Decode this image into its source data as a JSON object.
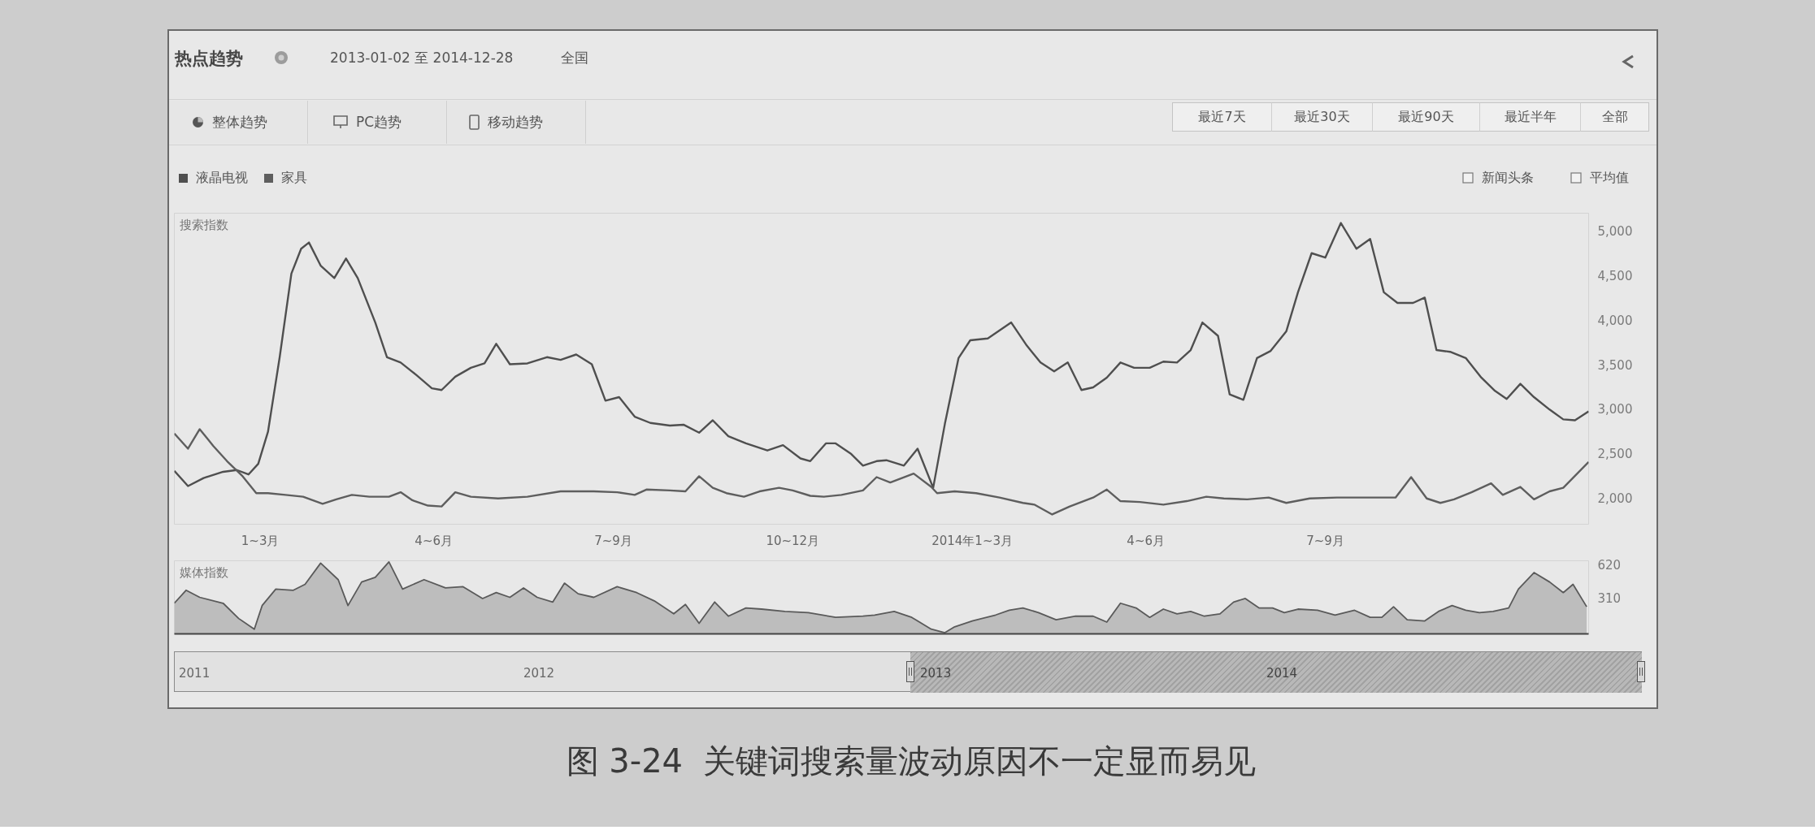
{
  "chart_data": [
    {
      "type": "line",
      "title": "热点趋势",
      "subtitle": "2013-01-02 至 2014-12-28",
      "ylabel": "搜索指数",
      "series": [
        {
          "name": "液晶电视",
          "color": "#4f4f4f",
          "x": [
            "2013-01-02",
            "2013-01-09",
            "2013-01-17",
            "2013-01-27",
            "2013-02-03",
            "2013-02-09",
            "2013-02-14",
            "2013-02-19",
            "2013-02-25",
            "2013-03-03",
            "2013-03-08",
            "2013-03-12",
            "2013-03-18",
            "2013-03-25",
            "2013-03-31",
            "2013-04-06",
            "2013-04-15",
            "2013-04-21",
            "2013-04-28",
            "2013-05-06",
            "2013-05-14",
            "2013-05-19",
            "2013-05-26",
            "2013-06-03",
            "2013-06-10",
            "2013-06-16",
            "2013-06-23",
            "2013-07-02",
            "2013-07-12",
            "2013-07-19",
            "2013-07-27",
            "2013-08-04",
            "2013-08-11",
            "2013-08-18",
            "2013-08-26",
            "2013-09-03",
            "2013-09-13",
            "2013-09-20",
            "2013-09-28",
            "2013-10-05",
            "2013-10-13",
            "2013-10-22",
            "2013-11-02",
            "2013-11-10",
            "2013-11-19",
            "2013-11-24",
            "2013-12-02",
            "2013-12-07",
            "2013-12-15",
            "2013-12-21",
            "2013-12-28",
            "2014-01-02",
            "2014-01-11",
            "2014-01-18",
            "2014-01-26",
            "2014-02-01",
            "2014-02-08",
            "2014-02-14",
            "2014-02-23",
            "2014-03-07",
            "2014-03-15",
            "2014-03-22",
            "2014-03-29",
            "2014-04-05",
            "2014-04-12",
            "2014-04-18",
            "2014-04-25",
            "2014-05-02",
            "2014-05-09",
            "2014-05-17",
            "2014-05-24",
            "2014-05-31",
            "2014-06-07",
            "2014-06-13",
            "2014-06-21",
            "2014-06-27",
            "2014-07-04",
            "2014-07-11",
            "2014-07-18",
            "2014-07-26",
            "2014-08-01",
            "2014-08-08",
            "2014-08-15",
            "2014-08-23",
            "2014-08-31",
            "2014-09-07",
            "2014-09-14",
            "2014-09-21",
            "2014-09-29",
            "2014-10-05",
            "2014-10-11",
            "2014-10-18",
            "2014-10-26",
            "2014-11-03",
            "2014-11-10",
            "2014-11-16",
            "2014-11-23",
            "2014-11-30",
            "2014-12-08",
            "2014-12-15",
            "2014-12-21",
            "2014-12-28"
          ],
          "values": [
            2300,
            2130,
            2220,
            2290,
            2310,
            2260,
            2380,
            2740,
            3580,
            4520,
            4800,
            4870,
            4610,
            4470,
            4690,
            4470,
            3970,
            3580,
            3520,
            3380,
            3230,
            3210,
            3360,
            3460,
            3510,
            3730,
            3500,
            3510,
            3580,
            3550,
            3610,
            3500,
            3090,
            3130,
            2910,
            2840,
            2810,
            2820,
            2730,
            2870,
            2690,
            2610,
            2530,
            2590,
            2440,
            2410,
            2610,
            2610,
            2490,
            2360,
            2410,
            2420,
            2360,
            2550,
            2110,
            2830,
            3570,
            3770,
            3790,
            3970,
            3710,
            3520,
            3420,
            3520,
            3210,
            3240,
            3350,
            3520,
            3460,
            3460,
            3530,
            3520,
            3660,
            3970,
            3820,
            3160,
            3100,
            3570,
            3650,
            3870,
            4310,
            4750,
            4700,
            5090,
            4800,
            4910,
            4310,
            4190,
            4190,
            4250,
            3660,
            3640,
            3570,
            3350,
            3200,
            3110,
            3280,
            3130,
            2990,
            2880,
            2870,
            2970
          ]
        },
        {
          "name": "家具",
          "color": "#5e5e5e",
          "x": [
            "2013-01-02",
            "2013-01-09",
            "2013-01-15",
            "2013-01-22",
            "2013-01-29",
            "2013-02-06",
            "2013-02-13",
            "2013-02-19",
            "2013-02-28",
            "2013-03-09",
            "2013-03-19",
            "2013-03-26",
            "2013-04-03",
            "2013-04-12",
            "2013-04-22",
            "2013-04-28",
            "2013-05-04",
            "2013-05-12",
            "2013-05-19",
            "2013-05-26",
            "2013-06-03",
            "2013-06-17",
            "2013-07-02",
            "2013-07-19",
            "2013-08-05",
            "2013-08-17",
            "2013-08-26",
            "2013-09-01",
            "2013-09-13",
            "2013-09-21",
            "2013-09-28",
            "2013-10-05",
            "2013-10-12",
            "2013-10-21",
            "2013-10-29",
            "2013-11-08",
            "2013-11-15",
            "2013-11-24",
            "2013-12-01",
            "2013-12-10",
            "2013-12-21",
            "2013-12-28",
            "2014-01-04",
            "2014-01-16",
            "2014-01-25",
            "2014-01-28",
            "2014-02-06",
            "2014-02-17",
            "2014-03-01",
            "2014-03-13",
            "2014-03-19",
            "2014-03-28",
            "2014-04-06",
            "2014-04-18",
            "2014-04-25",
            "2014-05-02",
            "2014-05-12",
            "2014-05-24",
            "2014-06-05",
            "2014-06-15",
            "2014-06-24",
            "2014-07-06",
            "2014-07-17",
            "2014-07-26",
            "2014-08-07",
            "2014-08-21",
            "2014-09-05",
            "2014-09-20",
            "2014-09-28",
            "2014-10-06",
            "2014-10-13",
            "2014-10-20",
            "2014-10-29",
            "2014-11-08",
            "2014-11-14",
            "2014-11-23",
            "2014-11-30",
            "2014-12-08",
            "2014-12-15",
            "2014-12-28"
          ],
          "values": [
            2720,
            2550,
            2770,
            2580,
            2410,
            2240,
            2050,
            2050,
            2030,
            2010,
            1930,
            1980,
            2030,
            2010,
            2010,
            2060,
            1970,
            1910,
            1900,
            2060,
            2010,
            1990,
            2010,
            2070,
            2070,
            2060,
            2030,
            2090,
            2080,
            2070,
            2240,
            2110,
            2050,
            2010,
            2070,
            2110,
            2080,
            2020,
            2010,
            2030,
            2080,
            2230,
            2170,
            2270,
            2120,
            2050,
            2070,
            2050,
            2000,
            1940,
            1920,
            1810,
            1900,
            2000,
            2090,
            1960,
            1950,
            1920,
            1960,
            2010,
            1990,
            1980,
            2000,
            1940,
            1990,
            2000,
            2000,
            2000,
            2230,
            1990,
            1940,
            1980,
            2060,
            2160,
            2030,
            2120,
            1980,
            2070,
            2110,
            2400
          ]
        }
      ],
      "xlim": [
        "2013-01-02",
        "2014-12-28"
      ],
      "xticks": [
        {
          "value": "2013-02-15",
          "label": "1~3月"
        },
        {
          "value": "2013-05-15",
          "label": "4~6月"
        },
        {
          "value": "2013-08-15",
          "label": "7~9月"
        },
        {
          "value": "2013-11-15",
          "label": "10~12月"
        },
        {
          "value": "2014-02-15",
          "label": "2014年1~3月"
        },
        {
          "value": "2014-05-15",
          "label": "4~6月"
        },
        {
          "value": "2014-08-15",
          "label": "7~9月"
        }
      ],
      "ylim": [
        1700,
        5200
      ],
      "yticks": [
        {
          "value": 2000,
          "label": "2,000"
        },
        {
          "value": 2500,
          "label": "2,500"
        },
        {
          "value": 3000,
          "label": "3,000"
        },
        {
          "value": 3500,
          "label": "3,500"
        },
        {
          "value": 4000,
          "label": "4,000"
        },
        {
          "value": 4500,
          "label": "4,500"
        },
        {
          "value": 5000,
          "label": "5,000"
        }
      ],
      "grid": false,
      "legend": "top left",
      "annotations": [
        "全国",
        "整体趋势",
        "PC趋势",
        "移动趋势",
        "最近7天",
        "最近30天",
        "最近90天",
        "最近半年",
        "全部",
        "新闻头条",
        "平均值",
        "2011",
        "2012",
        "2013",
        "2014",
        "图 3-24  关键词搜索量波动原因不一定显而易见"
      ]
    },
    {
      "type": "area",
      "ylabel": "媒体指数",
      "series": [
        {
          "color": "#bdbdbd",
          "x": [
            "2013-01-02",
            "2013-01-08",
            "2013-01-15",
            "2013-01-27",
            "2013-02-04",
            "2013-02-12",
            "2013-02-16",
            "2013-02-23",
            "2013-03-04",
            "2013-03-10",
            "2013-03-18",
            "2013-03-27",
            "2013-04-01",
            "2013-04-08",
            "2013-04-15",
            "2013-04-22",
            "2013-04-29",
            "2013-05-10",
            "2013-05-21",
            "2013-05-30",
            "2013-06-09",
            "2013-06-16",
            "2013-06-23",
            "2013-06-30",
            "2013-07-07",
            "2013-07-15",
            "2013-07-21",
            "2013-07-28",
            "2013-08-05",
            "2013-08-17",
            "2013-08-27",
            "2013-09-05",
            "2013-09-15",
            "2013-09-21",
            "2013-09-28",
            "2013-10-06",
            "2013-10-13",
            "2013-10-22",
            "2013-10-30",
            "2013-11-11",
            "2013-11-23",
            "2013-12-07",
            "2013-12-21",
            "2013-12-27",
            "2014-01-06",
            "2014-01-15",
            "2014-01-25",
            "2014-02-01",
            "2014-02-06",
            "2014-02-15",
            "2014-02-27",
            "2014-03-06",
            "2014-03-13",
            "2014-03-21",
            "2014-03-30",
            "2014-04-09",
            "2014-04-18",
            "2014-04-25",
            "2014-05-02",
            "2014-05-10",
            "2014-05-17",
            "2014-05-24",
            "2014-05-31",
            "2014-06-07",
            "2014-06-14",
            "2014-06-22",
            "2014-06-29",
            "2014-07-05",
            "2014-07-12",
            "2014-07-19",
            "2014-07-25",
            "2014-08-01",
            "2014-08-11",
            "2014-08-20",
            "2014-08-30",
            "2014-09-07",
            "2014-09-13",
            "2014-09-19",
            "2014-09-26",
            "2014-10-05",
            "2014-10-12",
            "2014-10-19",
            "2014-10-26",
            "2014-11-02",
            "2014-11-09",
            "2014-11-17",
            "2014-11-22",
            "2014-11-30",
            "2014-12-08",
            "2014-12-15",
            "2014-12-20",
            "2014-12-27"
          ],
          "values": [
            260,
            370,
            310,
            260,
            130,
            40,
            240,
            380,
            370,
            420,
            600,
            460,
            240,
            440,
            480,
            610,
            380,
            460,
            390,
            400,
            300,
            350,
            310,
            390,
            310,
            270,
            430,
            340,
            310,
            400,
            350,
            280,
            170,
            250,
            90,
            270,
            150,
            220,
            210,
            190,
            180,
            140,
            150,
            160,
            190,
            140,
            40,
            10,
            60,
            110,
            160,
            200,
            220,
            180,
            120,
            150,
            150,
            100,
            260,
            220,
            140,
            210,
            170,
            190,
            150,
            170,
            270,
            300,
            220,
            220,
            180,
            210,
            200,
            160,
            200,
            140,
            140,
            230,
            120,
            110,
            190,
            240,
            200,
            180,
            190,
            220,
            380,
            520,
            440,
            350,
            420,
            230
          ]
        }
      ],
      "xlim": [
        "2013-01-02",
        "2014-12-28"
      ],
      "ylim": [
        0,
        620
      ],
      "yticks": [
        310,
        620
      ],
      "grid": false,
      "tick_labels": "y"
    }
  ]
}
